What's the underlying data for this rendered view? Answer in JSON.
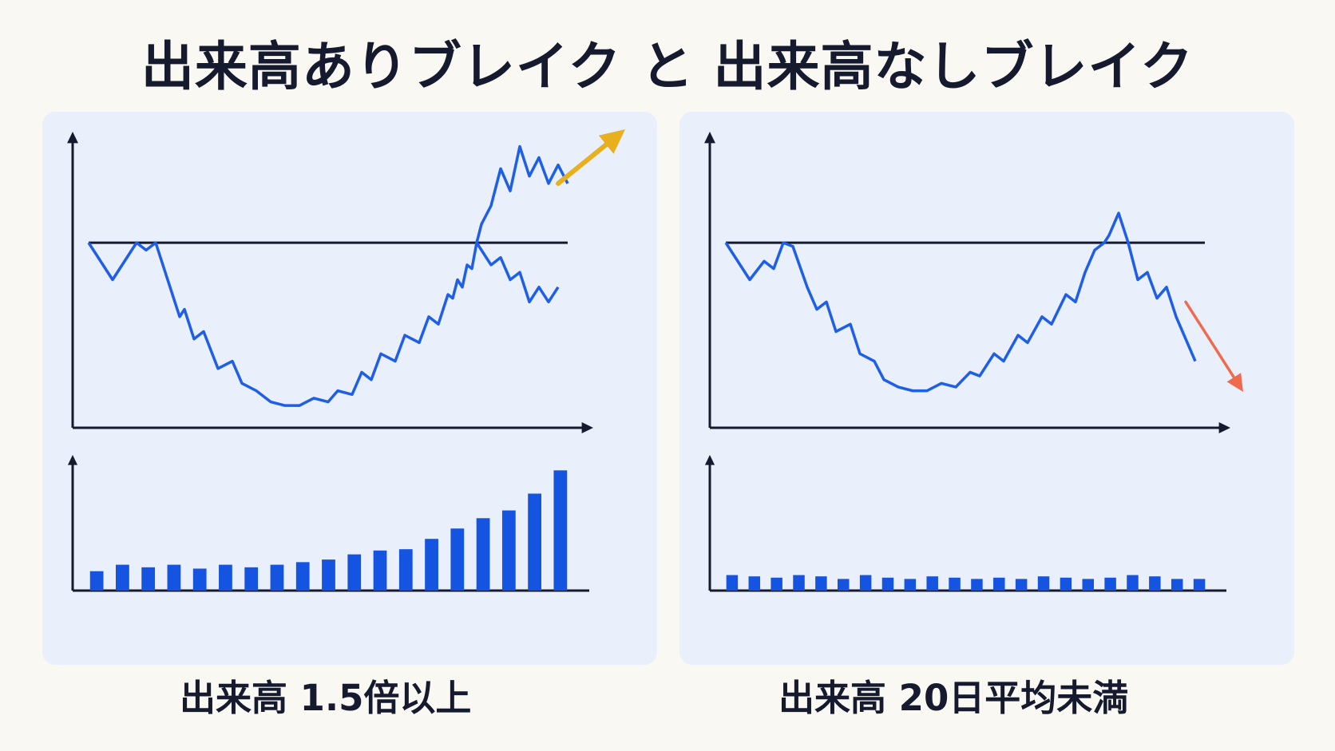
{
  "title": "出来高ありブレイク と 出来高なしブレイク",
  "colors": {
    "background": "#faf8f2",
    "panel": "#e9f0fb",
    "axis": "#161a2e",
    "price_line": "#1f5ee6",
    "volume_bar": "#1554e0",
    "up_arrow": "#e8b01e",
    "down_arrow": "#ef6b4f"
  },
  "panels": [
    {
      "caption": "出来高 1.5倍以上",
      "breakout": "up",
      "icons": [
        "up-arrow-icon"
      ]
    },
    {
      "caption": "出来高 20日平均未満",
      "breakout": "down",
      "icons": [
        "down-arrow-icon"
      ]
    }
  ],
  "chart_data": [
    {
      "type": "line",
      "panel": "left",
      "resistance": 70,
      "price": {
        "x": [
          0,
          5,
          10,
          12,
          14,
          17,
          19,
          20,
          22,
          24,
          27,
          30,
          32,
          35,
          38,
          41,
          44,
          47,
          50,
          52,
          55,
          57,
          59,
          61,
          64,
          66,
          69,
          71,
          73,
          75,
          76,
          77,
          78,
          79,
          80,
          81,
          82,
          84,
          86,
          88,
          90,
          92,
          94,
          96,
          98,
          100
        ],
        "y": [
          70,
          60,
          70,
          68,
          70,
          58,
          50,
          52,
          44,
          46,
          36,
          38,
          32,
          30,
          27,
          26,
          26,
          28,
          27,
          30,
          29,
          35,
          33,
          40,
          38,
          45,
          43,
          50,
          48,
          56,
          55,
          60,
          58,
          64,
          63,
          70,
          75,
          80,
          90,
          84,
          96,
          88,
          93,
          86,
          91,
          86
        ]
      },
      "failed_path": {
        "x": [
          81,
          84,
          86,
          88,
          90,
          92,
          94,
          96,
          98
        ],
        "y": [
          70,
          64,
          66,
          60,
          62,
          54,
          58,
          54,
          58
        ]
      },
      "breakout_arrow": {
        "from": [
          98,
          86
        ],
        "to": [
          112,
          140
        ]
      },
      "volume": [
        15,
        20,
        18,
        20,
        17,
        20,
        18,
        20,
        22,
        24,
        28,
        31,
        32,
        40,
        48,
        56,
        62,
        75,
        93
      ]
    },
    {
      "type": "line",
      "panel": "right",
      "resistance": 70,
      "price": {
        "x": [
          0,
          5,
          8,
          10,
          12,
          14,
          17,
          19,
          21,
          23,
          26,
          28,
          31,
          33,
          36,
          39,
          42,
          45,
          48,
          51,
          53,
          56,
          58,
          61,
          63,
          66,
          68,
          71,
          73,
          75,
          77,
          79,
          80,
          82,
          84,
          86,
          88,
          90,
          92,
          94,
          96,
          98
        ],
        "y": [
          70,
          60,
          65,
          63,
          70,
          69,
          58,
          52,
          54,
          46,
          48,
          40,
          38,
          33,
          31,
          30,
          30,
          32,
          31,
          35,
          34,
          40,
          38,
          45,
          43,
          50,
          48,
          56,
          54,
          62,
          68,
          70,
          72,
          78,
          70,
          60,
          62,
          55,
          58,
          50,
          44,
          38
        ]
      },
      "breakout_arrow": {
        "from": [
          95,
          50
        ],
        "to": [
          108,
          22
        ]
      },
      "volume": [
        12,
        11,
        10,
        12,
        11,
        9,
        12,
        10,
        9,
        11,
        10,
        9,
        10,
        9,
        11,
        10,
        9,
        10,
        12,
        11,
        9,
        9
      ]
    }
  ]
}
